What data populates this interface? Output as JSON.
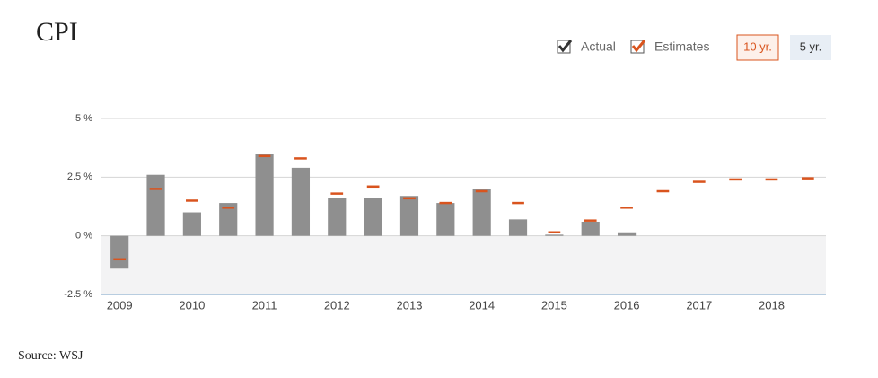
{
  "chart_data": {
    "type": "bar",
    "title": "CPI",
    "categories": [
      "2009",
      null,
      "2010",
      null,
      "2011",
      null,
      "2012",
      null,
      "2013",
      null,
      "2014",
      null,
      "2015",
      null,
      "2016",
      null,
      "2017",
      null,
      "2018",
      null
    ],
    "series": [
      {
        "name": "Actual",
        "color": "#8f8f8f",
        "values": [
          -1.4,
          2.6,
          1.0,
          1.4,
          3.5,
          2.9,
          1.6,
          1.6,
          1.7,
          1.4,
          2.0,
          0.7,
          0.05,
          0.6,
          0.15,
          null,
          null,
          null,
          null,
          null
        ]
      },
      {
        "name": "Estimates",
        "color": "#d9541e",
        "style": "dash",
        "values": [
          -1.0,
          2.0,
          1.5,
          1.2,
          3.4,
          3.3,
          1.8,
          2.1,
          1.6,
          1.4,
          1.9,
          1.4,
          0.15,
          0.65,
          1.2,
          1.9,
          2.3,
          2.4,
          2.4,
          2.45
        ]
      }
    ],
    "ylim": [
      -2.5,
      5
    ],
    "yticks": [
      {
        "value": -2.5,
        "label": "-2.5 %"
      },
      {
        "value": 0,
        "label": "0 %"
      },
      {
        "value": 2.5,
        "label": "2.5 %"
      },
      {
        "value": 5,
        "label": "5 %"
      }
    ],
    "grid": true,
    "range_buttons": [
      "10 yr.",
      "5 yr."
    ],
    "source": "Source: WSJ"
  }
}
